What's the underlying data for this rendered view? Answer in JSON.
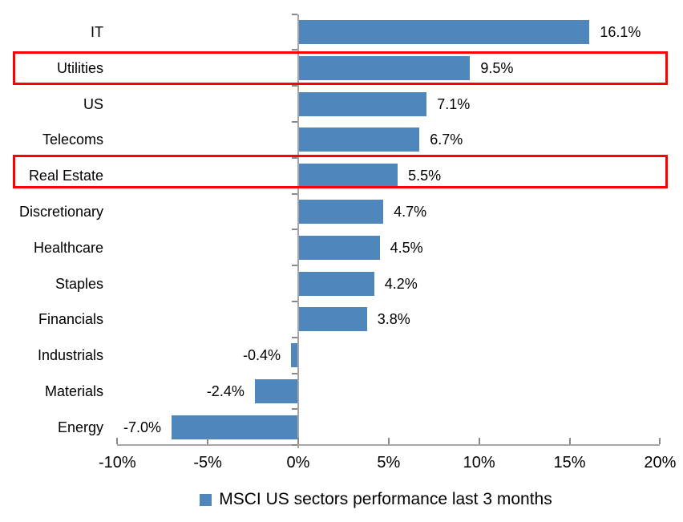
{
  "chart_data": {
    "type": "bar",
    "orientation": "horizontal",
    "categories": [
      "IT",
      "Utilities",
      "US",
      "Telecoms",
      "Real Estate",
      "Discretionary",
      "Healthcare",
      "Staples",
      "Financials",
      "Industrials",
      "Materials",
      "Energy"
    ],
    "values": [
      16.1,
      9.5,
      7.1,
      6.7,
      5.5,
      4.7,
      4.5,
      4.2,
      3.8,
      -0.4,
      -2.4,
      -7.0
    ],
    "value_labels": [
      "16.1%",
      "9.5%",
      "7.1%",
      "6.7%",
      "5.5%",
      "4.7%",
      "4.5%",
      "4.2%",
      "3.8%",
      "-0.4%",
      "-2.4%",
      "-7.0%"
    ],
    "series_name": "MSCI US sectors performance last 3 months",
    "xlim": [
      -10,
      20
    ],
    "x_ticks": [
      {
        "value": -10,
        "label": "-10%"
      },
      {
        "value": -5,
        "label": "-5%"
      },
      {
        "value": 0,
        "label": "0%"
      },
      {
        "value": 5,
        "label": "5%"
      },
      {
        "value": 10,
        "label": "10%"
      },
      {
        "value": 15,
        "label": "15%"
      },
      {
        "value": 20,
        "label": "20%"
      }
    ],
    "grid": false,
    "legend_position": "bottom",
    "highlights": [
      {
        "category": "Utilities",
        "offset_y": 0
      },
      {
        "category": "Real Estate",
        "offset_y": -5
      }
    ],
    "colors": {
      "bar": "#4F86BC",
      "highlight_box": "#FF0000",
      "axis_line": "#A6A6A6",
      "tick_mark": "#8A8A8A",
      "text": "#000000"
    }
  }
}
